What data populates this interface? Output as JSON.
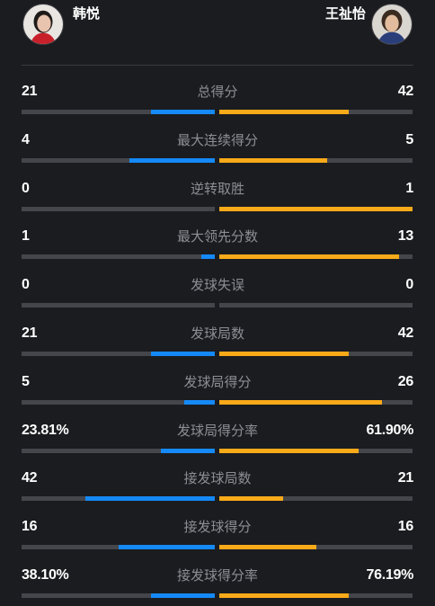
{
  "players": {
    "left": {
      "name": "韩悦",
      "avatar_icon": "player-photo-icon"
    },
    "right": {
      "name": "王祉怡",
      "avatar_icon": "player-photo-icon"
    }
  },
  "colors": {
    "background": "#1b1c20",
    "left_bar": "#1589f6",
    "right_bar": "#f9aa19",
    "track": "#45464b",
    "label": "#8d8e93"
  },
  "stats": [
    {
      "label": "总得分",
      "left": "21",
      "right": "42",
      "left_fill": 0.33,
      "right_fill": 0.67
    },
    {
      "label": "最大连续得分",
      "left": "4",
      "right": "5",
      "left_fill": 0.44,
      "right_fill": 0.56
    },
    {
      "label": "逆转取胜",
      "left": "0",
      "right": "1",
      "left_fill": 0.0,
      "right_fill": 1.0
    },
    {
      "label": "最大领先分数",
      "left": "1",
      "right": "13",
      "left_fill": 0.07,
      "right_fill": 0.93
    },
    {
      "label": "发球失误",
      "left": "0",
      "right": "0",
      "left_fill": 0.0,
      "right_fill": 0.0
    },
    {
      "label": "发球局数",
      "left": "21",
      "right": "42",
      "left_fill": 0.33,
      "right_fill": 0.67
    },
    {
      "label": "发球局得分",
      "left": "5",
      "right": "26",
      "left_fill": 0.16,
      "right_fill": 0.84
    },
    {
      "label": "发球局得分率",
      "left": "23.81%",
      "right": "61.90%",
      "left_fill": 0.28,
      "right_fill": 0.72
    },
    {
      "label": "接发球局数",
      "left": "42",
      "right": "21",
      "left_fill": 0.67,
      "right_fill": 0.33
    },
    {
      "label": "接发球得分",
      "left": "16",
      "right": "16",
      "left_fill": 0.5,
      "right_fill": 0.5
    },
    {
      "label": "接发球得分率",
      "left": "38.10%",
      "right": "76.19%",
      "left_fill": 0.33,
      "right_fill": 0.67
    }
  ]
}
